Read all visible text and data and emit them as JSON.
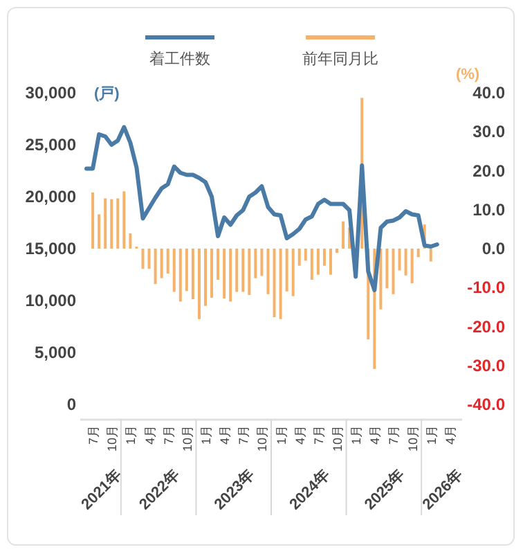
{
  "chart_data": {
    "type": "line",
    "legend": "top",
    "ylabel": "(戸)",
    "y2label": "(%)",
    "x": [
      "2021-06",
      "2021-07",
      "2021-08",
      "2021-09",
      "2021-10",
      "2021-11",
      "2021-12",
      "2022-01",
      "2022-02",
      "2022-03",
      "2022-04",
      "2022-05",
      "2022-06",
      "2022-07",
      "2022-08",
      "2022-09",
      "2022-10",
      "2022-11",
      "2022-12",
      "2023-01",
      "2023-02",
      "2023-03",
      "2023-04",
      "2023-05",
      "2023-06",
      "2023-07",
      "2023-08",
      "2023-09",
      "2023-10",
      "2023-11",
      "2023-12",
      "2024-01",
      "2024-02",
      "2024-03",
      "2024-04",
      "2024-05",
      "2024-06",
      "2024-07",
      "2024-08",
      "2024-09",
      "2024-10",
      "2024-11",
      "2024-12",
      "2025-01",
      "2025-02",
      "2025-03",
      "2025-04",
      "2025-05",
      "2025-06",
      "2025-07",
      "2025-08",
      "2025-09",
      "2025-10",
      "2025-11",
      "2025-12",
      "2026-01",
      "2026-02"
    ],
    "series": [
      {
        "name": "着工件数",
        "color": "#4a7ba6",
        "values": [
          22700,
          22700,
          26000,
          25800,
          25000,
          25400,
          26700,
          25200,
          22800,
          17900,
          18900,
          19900,
          20800,
          21200,
          22900,
          22300,
          22100,
          22100,
          21800,
          21400,
          20000,
          16200,
          18000,
          17300,
          18200,
          18700,
          20000,
          20400,
          21000,
          19000,
          18300,
          18200,
          16000,
          16400,
          16900,
          17800,
          18100,
          19300,
          19700,
          19300,
          19300,
          19300,
          18700,
          12300,
          23000,
          12800,
          11000,
          17000,
          17600,
          17700,
          18000,
          18600,
          18300,
          18200,
          15300,
          15200,
          15400
        ]
      },
      {
        "name": "前年同月比",
        "type": "bar",
        "axis": "y2",
        "color": "#f5b26b",
        "values": [
          null,
          14.4,
          8.8,
          12.9,
          12.7,
          12.9,
          14.7,
          3.9,
          0.5,
          -5.2,
          -5.2,
          -9.1,
          -7.6,
          -6.4,
          -11.1,
          -13.6,
          -10.9,
          -13,
          -18.1,
          -14.7,
          -12.6,
          -8,
          -12.8,
          -13.6,
          -11.1,
          -11.1,
          -11.9,
          -7.6,
          -7,
          -11.7,
          -17.6,
          -18.1,
          -11,
          -12.2,
          -4.4,
          -3.1,
          -8,
          -6.7,
          -4.4,
          -6.7,
          -1.1,
          7,
          5.4,
          null,
          38.7,
          -23.3,
          -30.9,
          -15.6,
          -10.2,
          -11.7,
          -5.6,
          -6.9,
          -8.9,
          -2.2,
          6.2,
          -3.3,
          null
        ]
      }
    ],
    "xlim": [
      "2021-05",
      "2026-06"
    ],
    "xticks": [
      {
        "value": "2021-07",
        "label": "7月"
      },
      {
        "value": "2021-10",
        "label": "10月"
      },
      {
        "value": "2022-01",
        "label": "1月"
      },
      {
        "value": "2022-04",
        "label": "4月"
      },
      {
        "value": "2022-07",
        "label": "7月"
      },
      {
        "value": "2022-10",
        "label": "10月"
      },
      {
        "value": "2023-01",
        "label": "1月"
      },
      {
        "value": "2023-04",
        "label": "4月"
      },
      {
        "value": "2023-07",
        "label": "7月"
      },
      {
        "value": "2023-10",
        "label": "10月"
      },
      {
        "value": "2024-01",
        "label": "1月"
      },
      {
        "value": "2024-04",
        "label": "4月"
      },
      {
        "value": "2024-07",
        "label": "7月"
      },
      {
        "value": "2024-10",
        "label": "10月"
      },
      {
        "value": "2025-01",
        "label": "1月"
      },
      {
        "value": "2025-04",
        "label": "4月"
      },
      {
        "value": "2025-07",
        "label": "7月"
      },
      {
        "value": "2025-10",
        "label": "10月"
      },
      {
        "value": "2026-01",
        "label": "1月"
      },
      {
        "value": "2026-04",
        "label": "4月"
      }
    ],
    "ylim": [
      0,
      30000
    ],
    "yticks": [
      0,
      {
        "value": 5000,
        "label": "5,000"
      },
      {
        "value": 10000,
        "label": "10,000"
      },
      {
        "value": 15000,
        "label": "15,000"
      },
      {
        "value": 20000,
        "label": "20,000"
      },
      {
        "value": 25000,
        "label": "25,000"
      },
      {
        "value": 30000,
        "label": "30,000"
      }
    ],
    "y2lim": [
      -40,
      40
    ],
    "y2ticks": [
      {
        "value": -40,
        "label": "-40.0"
      },
      {
        "value": -30,
        "label": "-30.0"
      },
      {
        "value": -20,
        "label": "-20.0"
      },
      {
        "value": -10,
        "label": "-10.0"
      },
      {
        "value": 0,
        "label": "0.0"
      },
      {
        "value": 10,
        "label": "10.0"
      },
      {
        "value": 20,
        "label": "20.0"
      },
      {
        "value": 30,
        "label": "30.0"
      },
      {
        "value": 40,
        "label": "40.0"
      }
    ],
    "annotations": [
      "2021年",
      "2022年",
      "2023年",
      "2024年",
      "2025年",
      "2026年"
    ],
    "grid": false
  }
}
